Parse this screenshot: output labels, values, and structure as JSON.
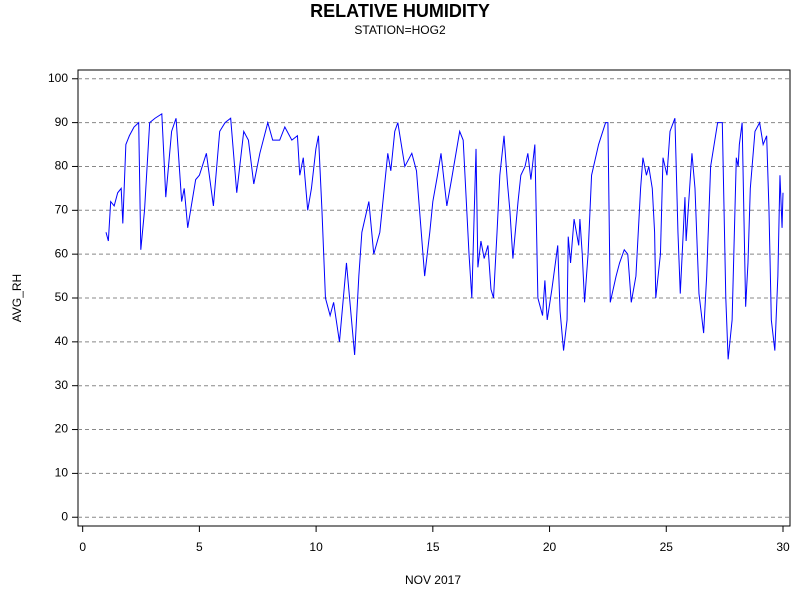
{
  "chart_data": {
    "type": "line",
    "title": "RELATIVE HUMIDITY",
    "subtitle": "STATION=HOG2",
    "x_label": "NOV 2017",
    "y_label": "AVG_RH",
    "xlim": [
      -0.2,
      30.3
    ],
    "xticks": [
      0,
      5,
      10,
      15,
      20,
      25,
      30
    ],
    "ylim": [
      -2,
      102
    ],
    "yticks": [
      0,
      10,
      20,
      30,
      40,
      50,
      60,
      70,
      80,
      90,
      100
    ],
    "grid": true,
    "series": [
      {
        "name": "AVG_RH",
        "color": "#0000ff",
        "x": [
          1.0,
          1.1,
          1.2,
          1.35,
          1.5,
          1.65,
          1.72,
          1.85,
          2.0,
          2.2,
          2.4,
          2.49,
          2.65,
          2.87,
          3.1,
          3.39,
          3.5,
          3.56,
          3.81,
          4.0,
          4.24,
          4.35,
          4.5,
          4.84,
          5.0,
          5.3,
          5.6,
          5.87,
          6.1,
          6.34,
          6.6,
          6.9,
          7.1,
          7.33,
          7.59,
          7.93,
          8.14,
          8.44,
          8.66,
          8.96,
          9.2,
          9.3,
          9.45,
          9.64,
          9.8,
          9.99,
          10.1,
          10.25,
          10.4,
          10.6,
          10.75,
          11.0,
          11.3,
          11.65,
          11.83,
          11.96,
          12.26,
          12.47,
          12.73,
          13.07,
          13.2,
          13.37,
          13.5,
          13.8,
          14.1,
          14.3,
          14.65,
          14.87,
          15.0,
          15.2,
          15.35,
          15.6,
          15.8,
          16.15,
          16.3,
          16.55,
          16.67,
          16.85,
          16.93,
          17.06,
          17.2,
          17.36,
          17.49,
          17.6,
          17.75,
          17.87,
          18.05,
          18.2,
          18.3,
          18.43,
          18.65,
          18.77,
          18.95,
          19.07,
          19.2,
          19.37,
          19.5,
          19.7,
          19.8,
          19.9,
          20.1,
          20.3,
          20.35,
          20.45,
          20.6,
          20.75,
          20.8,
          20.9,
          21.05,
          21.25,
          21.3,
          21.4,
          21.5,
          21.65,
          21.8,
          22.1,
          22.4,
          22.5,
          22.6,
          22.85,
          23.0,
          23.2,
          23.35,
          23.5,
          23.7,
          23.9,
          24.0,
          24.15,
          24.25,
          24.4,
          24.5,
          24.55,
          24.75,
          24.86,
          25.03,
          25.16,
          25.37,
          25.5,
          25.6,
          25.8,
          25.85,
          26.0,
          26.1,
          26.23,
          26.4,
          26.6,
          26.73,
          26.9,
          27.2,
          27.4,
          27.55,
          27.65,
          27.82,
          28.0,
          28.08,
          28.13,
          28.25,
          28.4,
          28.5,
          28.6,
          28.8,
          29.0,
          29.15,
          29.3,
          29.4,
          29.5,
          29.65,
          29.78,
          29.87,
          29.96,
          30.0
        ],
        "values": [
          65,
          63,
          72,
          71,
          74,
          75,
          67,
          85,
          87,
          89,
          90,
          61,
          70,
          90,
          91,
          92,
          80,
          73,
          88,
          91,
          72,
          75,
          66,
          77,
          78,
          83,
          71,
          88,
          90,
          91,
          74,
          88,
          86,
          76,
          83,
          90,
          86,
          86,
          89,
          86,
          87,
          78,
          82,
          70,
          75,
          84,
          87,
          70,
          50,
          46,
          49,
          40,
          58,
          37,
          55,
          65,
          72,
          60,
          65,
          83,
          79,
          88,
          90,
          80,
          83,
          79,
          55,
          65,
          72,
          78,
          83,
          71,
          77,
          88,
          86,
          60,
          50,
          84,
          57,
          63,
          59,
          62,
          52,
          50,
          65,
          78,
          87,
          76,
          70,
          59,
          72,
          78,
          80,
          83,
          77,
          85,
          50,
          46,
          54,
          45,
          52,
          60,
          62,
          47,
          38,
          45,
          64,
          58,
          68,
          62,
          68,
          60,
          49,
          60,
          78,
          85,
          90,
          90,
          49,
          55,
          58,
          61,
          60,
          49,
          55,
          75,
          82,
          78,
          80,
          75,
          65,
          50,
          60,
          82,
          78,
          88,
          91,
          65,
          51,
          73,
          63,
          75,
          83,
          75,
          51,
          42,
          55,
          80,
          90,
          90,
          50,
          36,
          45,
          82,
          80,
          85,
          90,
          48,
          58,
          75,
          88,
          90,
          85,
          87,
          70,
          45,
          38,
          55,
          78,
          66,
          74
        ]
      }
    ]
  }
}
